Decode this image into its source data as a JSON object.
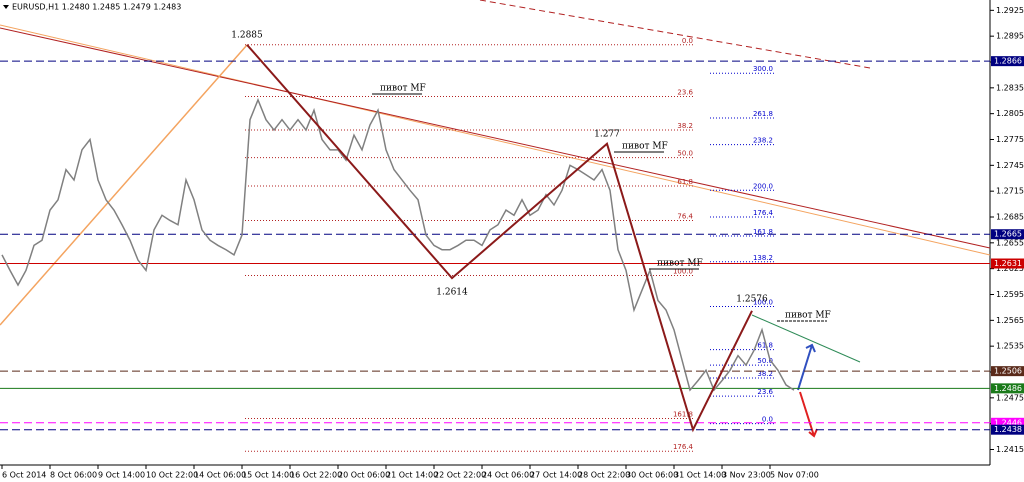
{
  "chart_data": {
    "type": "line",
    "title": "EURUSD,H1 1.2480 1.2485 1.2479 1.2483",
    "categories": [
      "6 Oct 2014",
      null,
      null,
      null,
      null,
      null,
      "8 Oct 06:00",
      null,
      null,
      null,
      null,
      null,
      "9 Oct 14:00",
      null,
      null,
      null,
      null,
      null,
      "10 Oct 22:00",
      null,
      null,
      null,
      null,
      null,
      "14 Oct 06:00",
      null,
      null,
      null,
      null,
      null,
      "15 Oct 14:00",
      null,
      null,
      null,
      null,
      null,
      "16 Oct 22:00",
      null,
      null,
      null,
      null,
      null,
      "20 Oct 06:00",
      null,
      null,
      null,
      null,
      null,
      "21 Oct 14:00",
      null,
      null,
      null,
      null,
      null,
      "22 Oct 22:00",
      null,
      null,
      null,
      null,
      null,
      "24 Oct 06:00",
      null,
      null,
      null,
      null,
      null,
      "27 Oct 14:00",
      null,
      null,
      null,
      null,
      null,
      "28 Oct 22:00",
      null,
      null,
      null,
      null,
      null,
      "30 Oct 06:00",
      null,
      null,
      null,
      null,
      null,
      "31 Oct 14:00",
      null,
      null,
      null,
      null,
      null,
      "3 Nov 23:00",
      null,
      null,
      null,
      null,
      null,
      "5 Nov 07:00",
      null,
      null,
      null
    ],
    "series": [
      {
        "name": "EURUSD",
        "color": "#808080",
        "values": [
          1.2641,
          1.2623,
          1.2606,
          1.2623,
          1.2652,
          1.2658,
          1.2693,
          1.2705,
          1.274,
          1.2728,
          1.2763,
          1.2775,
          1.2728,
          1.2705,
          1.2693,
          1.2676,
          1.2658,
          1.2635,
          1.2623,
          1.267,
          1.2687,
          1.2681,
          1.2676,
          1.2728,
          1.2705,
          1.267,
          1.2658,
          1.2652,
          1.2647,
          1.2641,
          1.2664,
          1.2798,
          1.2821,
          1.2798,
          1.2786,
          1.2798,
          1.2786,
          1.2798,
          1.2786,
          1.2809,
          1.2775,
          1.2763,
          1.2763,
          1.2751,
          1.278,
          1.2763,
          1.2792,
          1.2809,
          1.2763,
          1.274,
          1.2728,
          1.2716,
          1.2705,
          1.2664,
          1.2652,
          1.2647,
          1.2647,
          1.2652,
          1.2658,
          1.2658,
          1.2652,
          1.267,
          1.2676,
          1.2693,
          1.2687,
          1.2705,
          1.2687,
          1.2693,
          1.2711,
          1.2699,
          1.2716,
          1.2745,
          1.274,
          1.2734,
          1.2728,
          1.274,
          1.2716,
          1.2647,
          1.2623,
          1.2577,
          1.26,
          1.2623,
          1.2588,
          1.2577,
          1.2554,
          1.2519,
          1.2484,
          1.2495,
          1.2507,
          1.2484,
          1.2495,
          1.2507,
          1.2524,
          1.2513,
          1.253,
          1.2554,
          1.2519,
          1.2507,
          1.249,
          1.2484
        ]
      }
    ],
    "zigzag": {
      "color": "#8b1a1a",
      "values": [
        1.2885,
        1.2614,
        1.277,
        1.2438,
        1.2576
      ]
    },
    "pivot_labels": [
      "пивот MF",
      "пивот MF",
      "пивот MF",
      "пивот MF"
    ],
    "levels": [
      {
        "value": 1.2866,
        "color": "#000080"
      },
      {
        "value": 1.2665,
        "color": "#000080"
      },
      {
        "value": 1.2631,
        "color": "#cc0000"
      },
      {
        "value": 1.2506,
        "color": "#5a2a1a"
      },
      {
        "value": 1.2486,
        "color": "#1a7a1a"
      },
      {
        "value": 1.2446,
        "color": "#ff00ff"
      },
      {
        "value": 1.2438,
        "color": "#000080"
      }
    ],
    "fib_red": {
      "color": "#b22222",
      "levels": [
        {
          "label": "0.0",
          "value": 1.2885
        },
        {
          "label": "23.6",
          "value": 1.2825
        },
        {
          "label": "38.2",
          "value": 1.2786
        },
        {
          "label": "50.0",
          "value": 1.2754
        },
        {
          "label": "61.8",
          "value": 1.2721
        },
        {
          "label": "76.4",
          "value": 1.2681
        },
        {
          "label": "100.0",
          "value": 1.2617
        },
        {
          "label": "161.8",
          "value": 1.2451
        },
        {
          "label": "176.4",
          "value": 1.2413
        }
      ]
    },
    "fib_blue": {
      "color": "#0000cd",
      "levels": [
        {
          "label": "300.0",
          "value": 1.2852
        },
        {
          "label": "261.8",
          "value": 1.28
        },
        {
          "label": "238.2",
          "value": 1.2769
        },
        {
          "label": "200.0",
          "value": 1.2716
        },
        {
          "label": "176.4",
          "value": 1.2685
        },
        {
          "label": "161.8",
          "value": 1.2663
        },
        {
          "label": "138.2",
          "value": 1.2633
        },
        {
          "label": "100.0",
          "value": 1.2581
        },
        {
          "label": "61.8",
          "value": 1.2531
        },
        {
          "label": "50.0",
          "value": 1.2513
        },
        {
          "label": "38.2",
          "value": 1.2498
        },
        {
          "label": "23.6",
          "value": 1.2477
        },
        {
          "label": "0.0",
          "value": 1.2445
        }
      ]
    },
    "ylim": [
      1.2397,
      1.2937
    ],
    "yticks": [
      1.2925,
      1.2895,
      1.2865,
      1.2835,
      1.2805,
      1.2775,
      1.2745,
      1.2715,
      1.2685,
      1.2655,
      1.2625,
      1.2595,
      1.2565,
      1.2535,
      1.2505,
      1.2475,
      1.2445,
      1.2415
    ]
  }
}
